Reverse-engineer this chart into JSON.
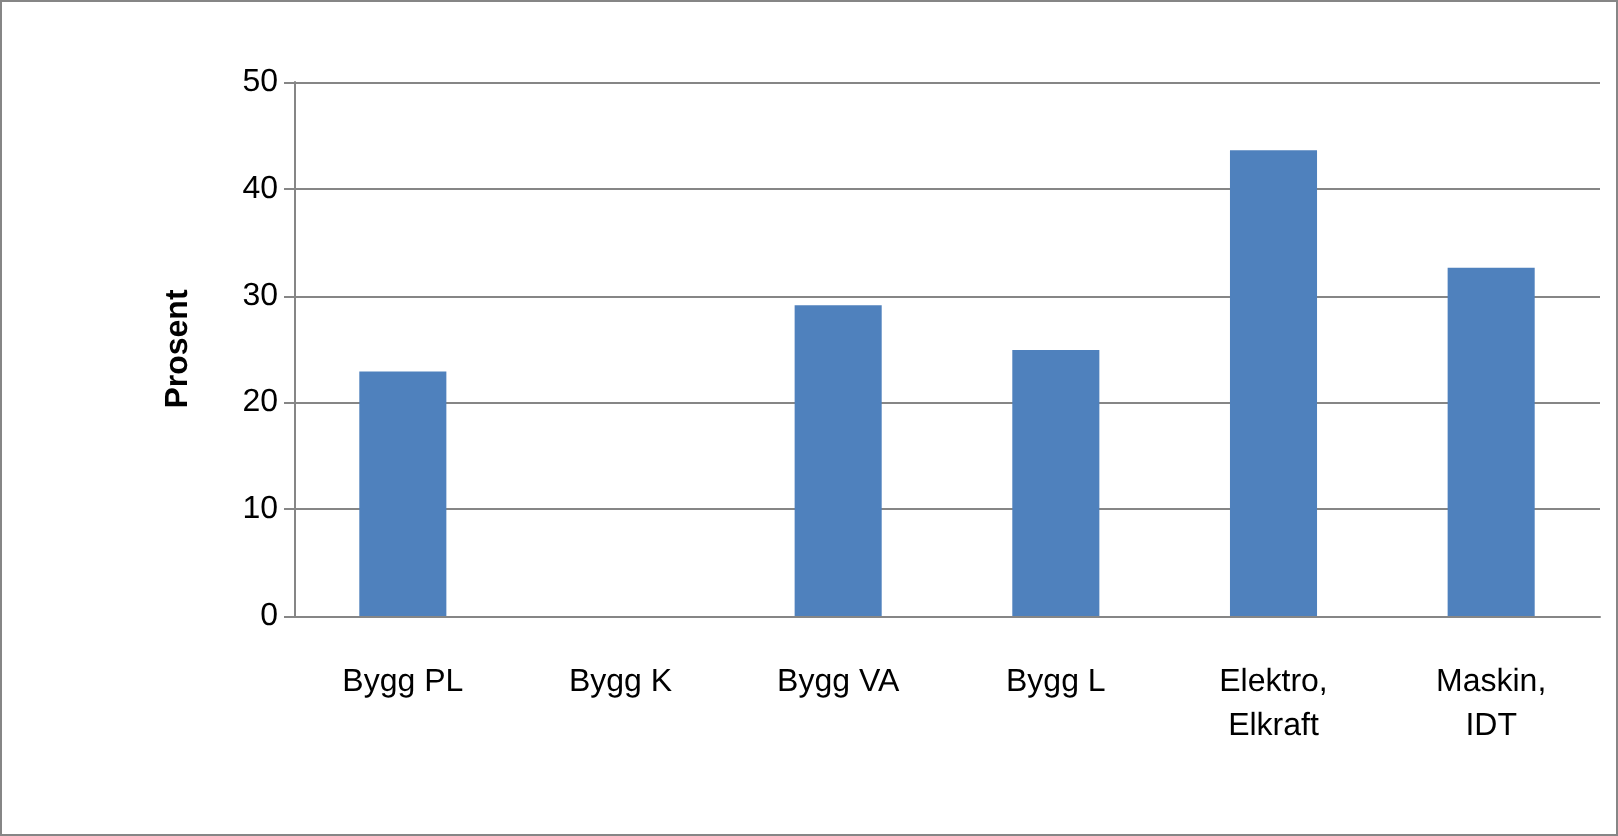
{
  "chart_data": {
    "type": "bar",
    "ylabel": "Prosent",
    "categories": [
      "Bygg PL",
      "Bygg K",
      "Bygg VA",
      "Bygg L",
      "Elektro,\nElkraft",
      "Maskin,\nIDT"
    ],
    "values": [
      22.9,
      0,
      29.1,
      24.9,
      43.6,
      32.6
    ],
    "color": "#4f81bd",
    "ylim": [
      0,
      50
    ],
    "yticks": [
      0,
      10,
      20,
      30,
      40,
      50
    ],
    "grid": "y"
  }
}
